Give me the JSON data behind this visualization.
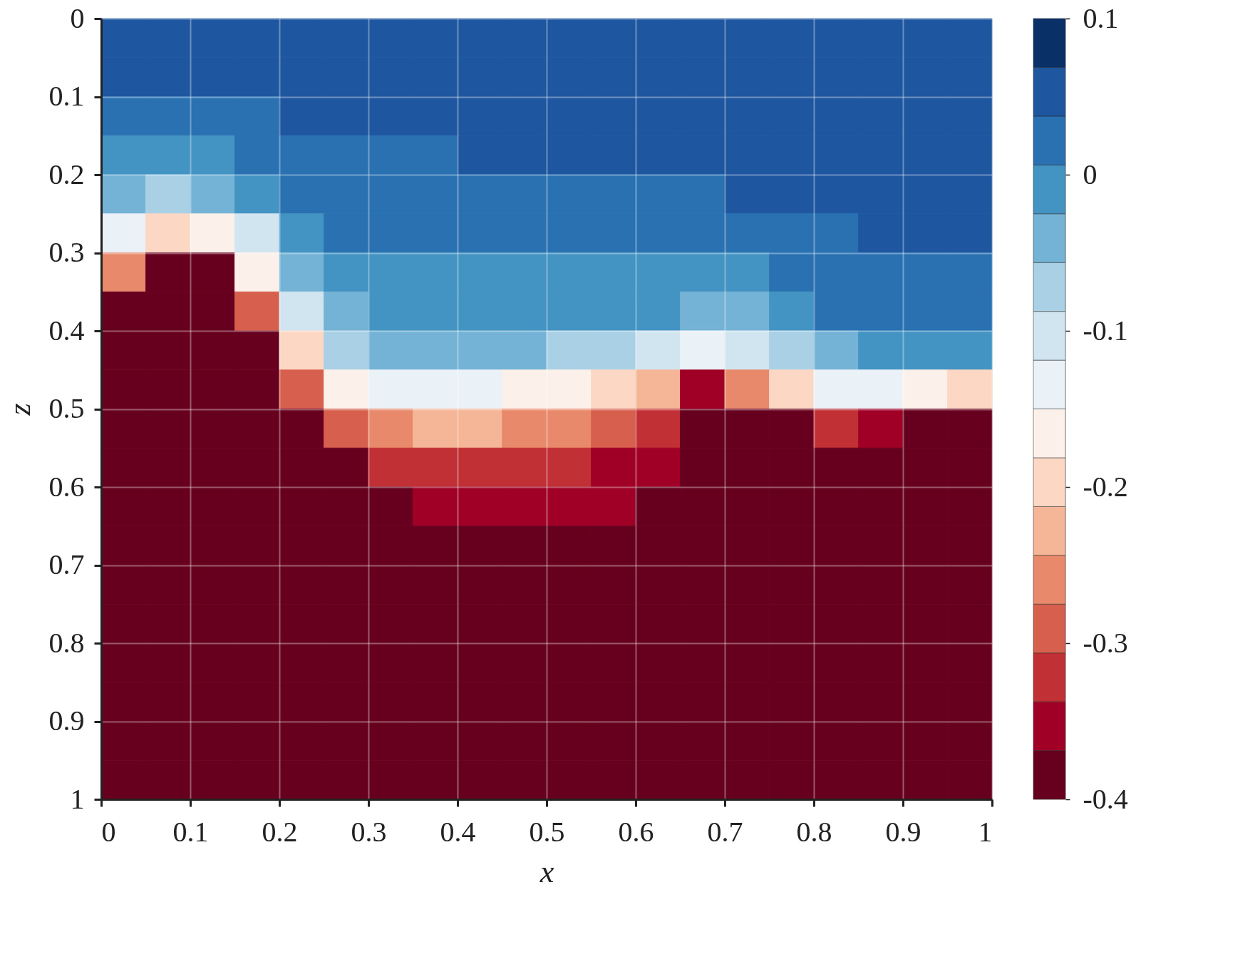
{
  "chart_data": {
    "type": "heatmap",
    "xlabel": "x",
    "ylabel": "z",
    "x": [
      0.025,
      0.075,
      0.125,
      0.175,
      0.225,
      0.275,
      0.325,
      0.375,
      0.425,
      0.475,
      0.525,
      0.575,
      0.625,
      0.675,
      0.725,
      0.775,
      0.825,
      0.875,
      0.925,
      0.975
    ],
    "y": [
      0.025,
      0.075,
      0.125,
      0.175,
      0.225,
      0.275,
      0.325,
      0.375,
      0.425,
      0.475,
      0.525,
      0.575,
      0.625,
      0.675,
      0.725,
      0.775,
      0.825,
      0.875,
      0.925,
      0.975
    ],
    "xlim": [
      0,
      1
    ],
    "ylim": [
      1,
      0
    ],
    "xticks": [
      0,
      0.1,
      0.2,
      0.3,
      0.4,
      0.5,
      0.6,
      0.7,
      0.8,
      0.9,
      1
    ],
    "yticks": [
      0,
      0.1,
      0.2,
      0.3,
      0.4,
      0.5,
      0.6,
      0.7,
      0.8,
      0.9,
      1
    ],
    "grid": true,
    "clim": [
      -0.4,
      0.1
    ],
    "cticks": [
      -0.4,
      -0.3,
      -0.2,
      -0.1,
      0,
      0.1
    ],
    "colors": [
      "#67001f",
      "#a00025",
      "#c03035",
      "#d6604d",
      "#e8896b",
      "#f5b597",
      "#fbd7c4",
      "#fbf0ea",
      "#ebf2f7",
      "#d1e5f0",
      "#a9d0e4",
      "#74b2d6",
      "#4393c3",
      "#2a71b2",
      "#1f56a0",
      "#0a3068"
    ],
    "cells": [
      [
        0.053,
        0.053,
        0.053,
        0.053,
        0.053,
        0.053,
        0.053,
        0.053,
        0.053,
        0.053,
        0.053,
        0.053,
        0.053,
        0.053,
        0.053,
        0.053,
        0.053,
        0.053,
        0.053,
        0.053
      ],
      [
        0.053,
        0.053,
        0.053,
        0.053,
        0.053,
        0.053,
        0.053,
        0.053,
        0.053,
        0.053,
        0.053,
        0.053,
        0.053,
        0.053,
        0.053,
        0.053,
        0.053,
        0.053,
        0.053,
        0.053
      ],
      [
        0.022,
        0.022,
        0.022,
        0.022,
        0.053,
        0.053,
        0.053,
        0.053,
        0.053,
        0.053,
        0.053,
        0.053,
        0.053,
        0.053,
        0.053,
        0.053,
        0.053,
        0.053,
        0.053,
        0.053
      ],
      [
        -0.009,
        -0.009,
        -0.009,
        0.022,
        0.022,
        0.022,
        0.022,
        0.022,
        0.053,
        0.053,
        0.053,
        0.053,
        0.053,
        0.053,
        0.053,
        0.053,
        0.053,
        0.053,
        0.053,
        0.053
      ],
      [
        -0.041,
        -0.072,
        -0.041,
        -0.009,
        0.022,
        0.022,
        0.022,
        0.022,
        0.022,
        0.022,
        0.022,
        0.022,
        0.022,
        0.022,
        0.053,
        0.053,
        0.053,
        0.053,
        0.053,
        0.053
      ],
      [
        -0.134,
        -0.197,
        -0.166,
        -0.103,
        -0.009,
        0.022,
        0.022,
        0.022,
        0.022,
        0.022,
        0.022,
        0.022,
        0.022,
        0.022,
        0.022,
        0.022,
        0.022,
        0.053,
        0.053,
        0.053
      ],
      [
        -0.259,
        -0.384,
        -0.384,
        -0.166,
        -0.041,
        -0.009,
        -0.009,
        -0.009,
        -0.009,
        -0.009,
        -0.009,
        -0.009,
        -0.009,
        -0.009,
        -0.009,
        0.022,
        0.022,
        0.022,
        0.022,
        0.022
      ],
      [
        -0.384,
        -0.384,
        -0.384,
        -0.291,
        -0.103,
        -0.041,
        -0.009,
        -0.009,
        -0.009,
        -0.009,
        -0.009,
        -0.009,
        -0.009,
        -0.041,
        -0.041,
        -0.009,
        0.022,
        0.022,
        0.022,
        0.022
      ],
      [
        -0.384,
        -0.384,
        -0.384,
        -0.384,
        -0.197,
        -0.072,
        -0.041,
        -0.041,
        -0.041,
        -0.041,
        -0.072,
        -0.072,
        -0.103,
        -0.134,
        -0.103,
        -0.072,
        -0.041,
        -0.009,
        -0.009,
        -0.009
      ],
      [
        -0.384,
        -0.384,
        -0.384,
        -0.384,
        -0.291,
        -0.166,
        -0.134,
        -0.134,
        -0.134,
        -0.166,
        -0.166,
        -0.197,
        -0.228,
        -0.353,
        -0.259,
        -0.197,
        -0.134,
        -0.134,
        -0.166,
        -0.197
      ],
      [
        -0.384,
        -0.384,
        -0.384,
        -0.384,
        -0.384,
        -0.291,
        -0.259,
        -0.228,
        -0.228,
        -0.259,
        -0.259,
        -0.291,
        -0.322,
        -0.384,
        -0.384,
        -0.384,
        -0.322,
        -0.353,
        -0.384,
        -0.384
      ],
      [
        -0.384,
        -0.384,
        -0.384,
        -0.384,
        -0.384,
        -0.384,
        -0.322,
        -0.322,
        -0.322,
        -0.322,
        -0.322,
        -0.353,
        -0.353,
        -0.384,
        -0.384,
        -0.384,
        -0.384,
        -0.384,
        -0.384,
        -0.384
      ],
      [
        -0.384,
        -0.384,
        -0.384,
        -0.384,
        -0.384,
        -0.384,
        -0.384,
        -0.353,
        -0.353,
        -0.353,
        -0.353,
        -0.353,
        -0.384,
        -0.384,
        -0.384,
        -0.384,
        -0.384,
        -0.384,
        -0.384,
        -0.384
      ],
      [
        -0.384,
        -0.384,
        -0.384,
        -0.384,
        -0.384,
        -0.384,
        -0.384,
        -0.384,
        -0.384,
        -0.384,
        -0.384,
        -0.384,
        -0.384,
        -0.384,
        -0.384,
        -0.384,
        -0.384,
        -0.384,
        -0.384,
        -0.384
      ],
      [
        -0.384,
        -0.384,
        -0.384,
        -0.384,
        -0.384,
        -0.384,
        -0.384,
        -0.384,
        -0.384,
        -0.384,
        -0.384,
        -0.384,
        -0.384,
        -0.384,
        -0.384,
        -0.384,
        -0.384,
        -0.384,
        -0.384,
        -0.384
      ],
      [
        -0.384,
        -0.384,
        -0.384,
        -0.384,
        -0.384,
        -0.384,
        -0.384,
        -0.384,
        -0.384,
        -0.384,
        -0.384,
        -0.384,
        -0.384,
        -0.384,
        -0.384,
        -0.384,
        -0.384,
        -0.384,
        -0.384,
        -0.384
      ],
      [
        -0.384,
        -0.384,
        -0.384,
        -0.384,
        -0.384,
        -0.384,
        -0.384,
        -0.384,
        -0.384,
        -0.384,
        -0.384,
        -0.384,
        -0.384,
        -0.384,
        -0.384,
        -0.384,
        -0.384,
        -0.384,
        -0.384,
        -0.384
      ],
      [
        -0.384,
        -0.384,
        -0.384,
        -0.384,
        -0.384,
        -0.384,
        -0.384,
        -0.384,
        -0.384,
        -0.384,
        -0.384,
        -0.384,
        -0.384,
        -0.384,
        -0.384,
        -0.384,
        -0.384,
        -0.384,
        -0.384,
        -0.384
      ],
      [
        -0.384,
        -0.384,
        -0.384,
        -0.384,
        -0.384,
        -0.384,
        -0.384,
        -0.384,
        -0.384,
        -0.384,
        -0.384,
        -0.384,
        -0.384,
        -0.384,
        -0.384,
        -0.384,
        -0.384,
        -0.384,
        -0.384,
        -0.384
      ],
      [
        -0.384,
        -0.384,
        -0.384,
        -0.384,
        -0.384,
        -0.384,
        -0.384,
        -0.384,
        -0.384,
        -0.384,
        -0.384,
        -0.384,
        -0.384,
        -0.384,
        -0.384,
        -0.384,
        -0.384,
        -0.384,
        -0.384,
        -0.384
      ]
    ]
  }
}
